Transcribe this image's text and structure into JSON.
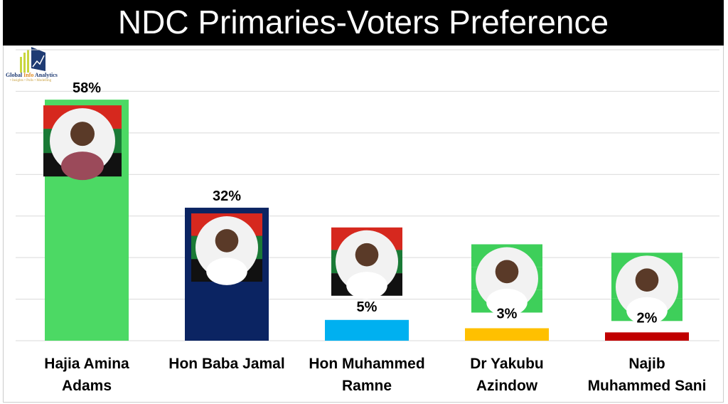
{
  "title": "NDC Primaries-Voters Preference",
  "logo": {
    "name_part1": "Global ",
    "name_part2": "Info",
    "name_part3": " Analytics",
    "tagline": "• Insights • Polls • Modelling"
  },
  "chart_data": {
    "type": "bar",
    "title": "NDC Primaries-Voters Preference",
    "xlabel": "",
    "ylabel": "",
    "ylim": [
      0,
      70
    ],
    "grid": true,
    "categories": [
      [
        "Hajia Amina",
        "Adams"
      ],
      [
        "Hon Baba Jamal"
      ],
      [
        "Hon Muhammed",
        "Ramne"
      ],
      [
        "Dr Yakubu",
        "Azindow"
      ],
      [
        "Najib",
        "Muhammed Sani"
      ]
    ],
    "values": [
      58,
      32,
      5,
      3,
      2
    ],
    "value_labels": [
      "58%",
      "32%",
      "5%",
      "3%",
      "2%"
    ],
    "colors": [
      "#4cd964",
      "#0b2462",
      "#00b0f0",
      "#ffc000",
      "#c00000"
    ],
    "candidate_photos": true
  }
}
